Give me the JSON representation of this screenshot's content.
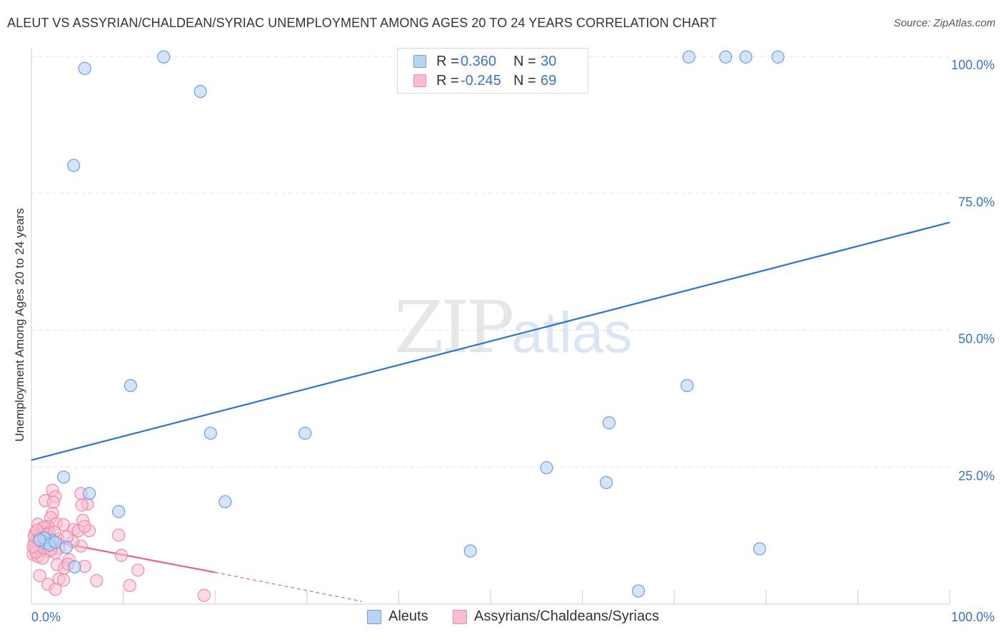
{
  "header": {
    "title": "ALEUT VS ASSYRIAN/CHALDEAN/SYRIAC UNEMPLOYMENT AMONG AGES 20 TO 24 YEARS CORRELATION CHART",
    "source": "Source: ZipAtlas.com"
  },
  "watermark": {
    "zip": "ZIP",
    "atlas": "atlas"
  },
  "legend_top": {
    "rows": [
      {
        "r_label": "R =",
        "r_value": "0.360",
        "n_label": "N =",
        "n_value": "30"
      },
      {
        "r_label": "R =",
        "r_value": "-0.245",
        "n_label": "N =",
        "n_value": "69"
      }
    ]
  },
  "legend_bottom": {
    "series_a": "Aleuts",
    "series_b": "Assyrians/Chaldeans/Syriacs"
  },
  "colors": {
    "aleut_fill": "#b9d3f3",
    "aleut_stroke": "#6d9ee0",
    "aleut_line": "#2d72d2",
    "assyr_fill": "#f8bdd0",
    "assyr_stroke": "#ec8aab",
    "assyr_line": "#e8618f",
    "axis_text": "#3a73c4",
    "grid": "#e3e3e3"
  },
  "chart_data": {
    "type": "scatter",
    "title": "ALEUT VS ASSYRIAN/CHALDEAN/SYRIAC UNEMPLOYMENT AMONG AGES 20 TO 24 YEARS CORRELATION CHART",
    "xlabel": "",
    "ylabel": "Unemployment Among Ages 20 to 24 years",
    "xlim": [
      0,
      100
    ],
    "ylim": [
      0,
      100
    ],
    "x_tick_labels": [
      "0.0%",
      "100.0%"
    ],
    "y_tick_labels": [
      {
        "value": 25,
        "label": "25.0%"
      },
      {
        "value": 50,
        "label": "50.0%"
      },
      {
        "value": 75,
        "label": "75.0%"
      },
      {
        "value": 100,
        "label": "100.0%"
      }
    ],
    "grid": true,
    "series": [
      {
        "name": "Aleuts",
        "r": 0.36,
        "n": 30,
        "trend": {
          "x0": 0,
          "y0": 26.3,
          "x1": 100,
          "y1": 69.7
        },
        "points": [
          [
            5.8,
            97.8
          ],
          [
            14.4,
            99.9
          ],
          [
            18.4,
            93.6
          ],
          [
            4.6,
            80.1
          ],
          [
            71.6,
            99.9
          ],
          [
            75.6,
            99.9
          ],
          [
            77.8,
            99.9
          ],
          [
            81.3,
            99.9
          ],
          [
            10.8,
            39.9
          ],
          [
            71.4,
            39.9
          ],
          [
            19.5,
            31.2
          ],
          [
            29.8,
            31.2
          ],
          [
            62.9,
            33.1
          ],
          [
            56.1,
            24.9
          ],
          [
            62.6,
            22.2
          ],
          [
            3.5,
            23.2
          ],
          [
            6.3,
            20.2
          ],
          [
            21.1,
            18.7
          ],
          [
            9.5,
            16.9
          ],
          [
            47.8,
            9.7
          ],
          [
            79.3,
            10.1
          ],
          [
            66.1,
            2.4
          ],
          [
            2.3,
            11.6
          ],
          [
            1.6,
            11.1
          ],
          [
            3.8,
            10.4
          ],
          [
            4.7,
            6.8
          ],
          [
            1.4,
            12.1
          ],
          [
            2.0,
            10.8
          ],
          [
            2.6,
            11.3
          ],
          [
            0.9,
            11.7
          ]
        ]
      },
      {
        "name": "Assyrians/Chaldeans/Syriacs",
        "r": -0.245,
        "n": 69,
        "trend": {
          "x0": 0,
          "y0": 12.2,
          "x1": 20,
          "y1": 5.8,
          "dash_to_x": 36,
          "dash_to_y": 0.5
        },
        "points": [
          [
            2.3,
            20.8
          ],
          [
            2.6,
            19.6
          ],
          [
            1.5,
            18.9
          ],
          [
            2.4,
            18.6
          ],
          [
            5.4,
            20.2
          ],
          [
            6.1,
            18.3
          ],
          [
            5.5,
            18.1
          ],
          [
            2.3,
            16.6
          ],
          [
            2.1,
            15.8
          ],
          [
            5.6,
            15.3
          ],
          [
            0.7,
            14.6
          ],
          [
            2.7,
            14.7
          ],
          [
            3.5,
            14.5
          ],
          [
            1.8,
            14.2
          ],
          [
            1.2,
            13.9
          ],
          [
            4.6,
            13.6
          ],
          [
            5.1,
            13.4
          ],
          [
            6.3,
            13.4
          ],
          [
            5.8,
            14.2
          ],
          [
            9.5,
            12.6
          ],
          [
            0.4,
            13.0
          ],
          [
            1.0,
            12.8
          ],
          [
            1.5,
            12.4
          ],
          [
            2.0,
            12.1
          ],
          [
            0.6,
            11.9
          ],
          [
            1.3,
            11.6
          ],
          [
            2.4,
            11.2
          ],
          [
            0.3,
            11.1
          ],
          [
            0.8,
            10.8
          ],
          [
            1.6,
            10.6
          ],
          [
            2.2,
            10.4
          ],
          [
            3.0,
            10.2
          ],
          [
            0.4,
            10.1
          ],
          [
            1.1,
            9.8
          ],
          [
            1.8,
            9.6
          ],
          [
            2.6,
            9.4
          ],
          [
            5.4,
            10.6
          ],
          [
            4.5,
            11.4
          ],
          [
            0.2,
            9.1
          ],
          [
            0.7,
            8.7
          ],
          [
            1.2,
            8.4
          ],
          [
            9.8,
            8.9
          ],
          [
            4.1,
            8.1
          ],
          [
            2.8,
            7.2
          ],
          [
            3.6,
            6.6
          ],
          [
            5.8,
            6.9
          ],
          [
            11.6,
            6.2
          ],
          [
            0.9,
            5.2
          ],
          [
            3.0,
            4.6
          ],
          [
            3.5,
            4.4
          ],
          [
            7.1,
            4.3
          ],
          [
            1.8,
            3.6
          ],
          [
            2.6,
            2.7
          ],
          [
            10.7,
            3.4
          ],
          [
            18.8,
            1.6
          ],
          [
            1.4,
            14.1
          ],
          [
            0.3,
            12.4
          ],
          [
            0.9,
            12.0
          ],
          [
            1.9,
            13.1
          ],
          [
            2.9,
            11.9
          ],
          [
            3.9,
            12.3
          ],
          [
            0.5,
            9.5
          ],
          [
            1.4,
            10.2
          ],
          [
            2.1,
            9.9
          ],
          [
            0.2,
            10.5
          ],
          [
            1.7,
            12.7
          ],
          [
            0.6,
            13.5
          ],
          [
            2.5,
            13.2
          ],
          [
            4.0,
            7.3
          ]
        ]
      }
    ]
  }
}
